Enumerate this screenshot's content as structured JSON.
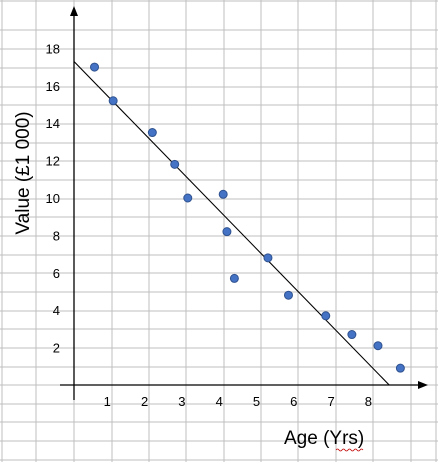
{
  "chart_data": {
    "type": "scatter",
    "xlabel": "Age (Yrs)",
    "ylabel": "Value (£1 000)",
    "x_ticks": [
      1,
      2,
      3,
      4,
      5,
      6,
      7,
      8
    ],
    "y_ticks": [
      2,
      4,
      6,
      8,
      10,
      12,
      14,
      16,
      18
    ],
    "xlim": [
      0,
      9.4
    ],
    "ylim": [
      0,
      19.5
    ],
    "grid": true,
    "point_color": "#4472c4",
    "points": [
      {
        "x": 0.55,
        "y": 17.0
      },
      {
        "x": 1.05,
        "y": 15.2
      },
      {
        "x": 2.1,
        "y": 13.5
      },
      {
        "x": 2.7,
        "y": 11.8
      },
      {
        "x": 3.05,
        "y": 10.0
      },
      {
        "x": 4.0,
        "y": 10.2
      },
      {
        "x": 4.1,
        "y": 8.2
      },
      {
        "x": 4.3,
        "y": 5.7
      },
      {
        "x": 5.2,
        "y": 6.8
      },
      {
        "x": 5.75,
        "y": 4.8
      },
      {
        "x": 6.75,
        "y": 3.7
      },
      {
        "x": 7.45,
        "y": 2.7
      },
      {
        "x": 8.15,
        "y": 2.1
      },
      {
        "x": 8.75,
        "y": 0.9
      }
    ],
    "trend_line": {
      "x": [
        0,
        8.45
      ],
      "y": [
        17.3,
        0
      ]
    }
  }
}
